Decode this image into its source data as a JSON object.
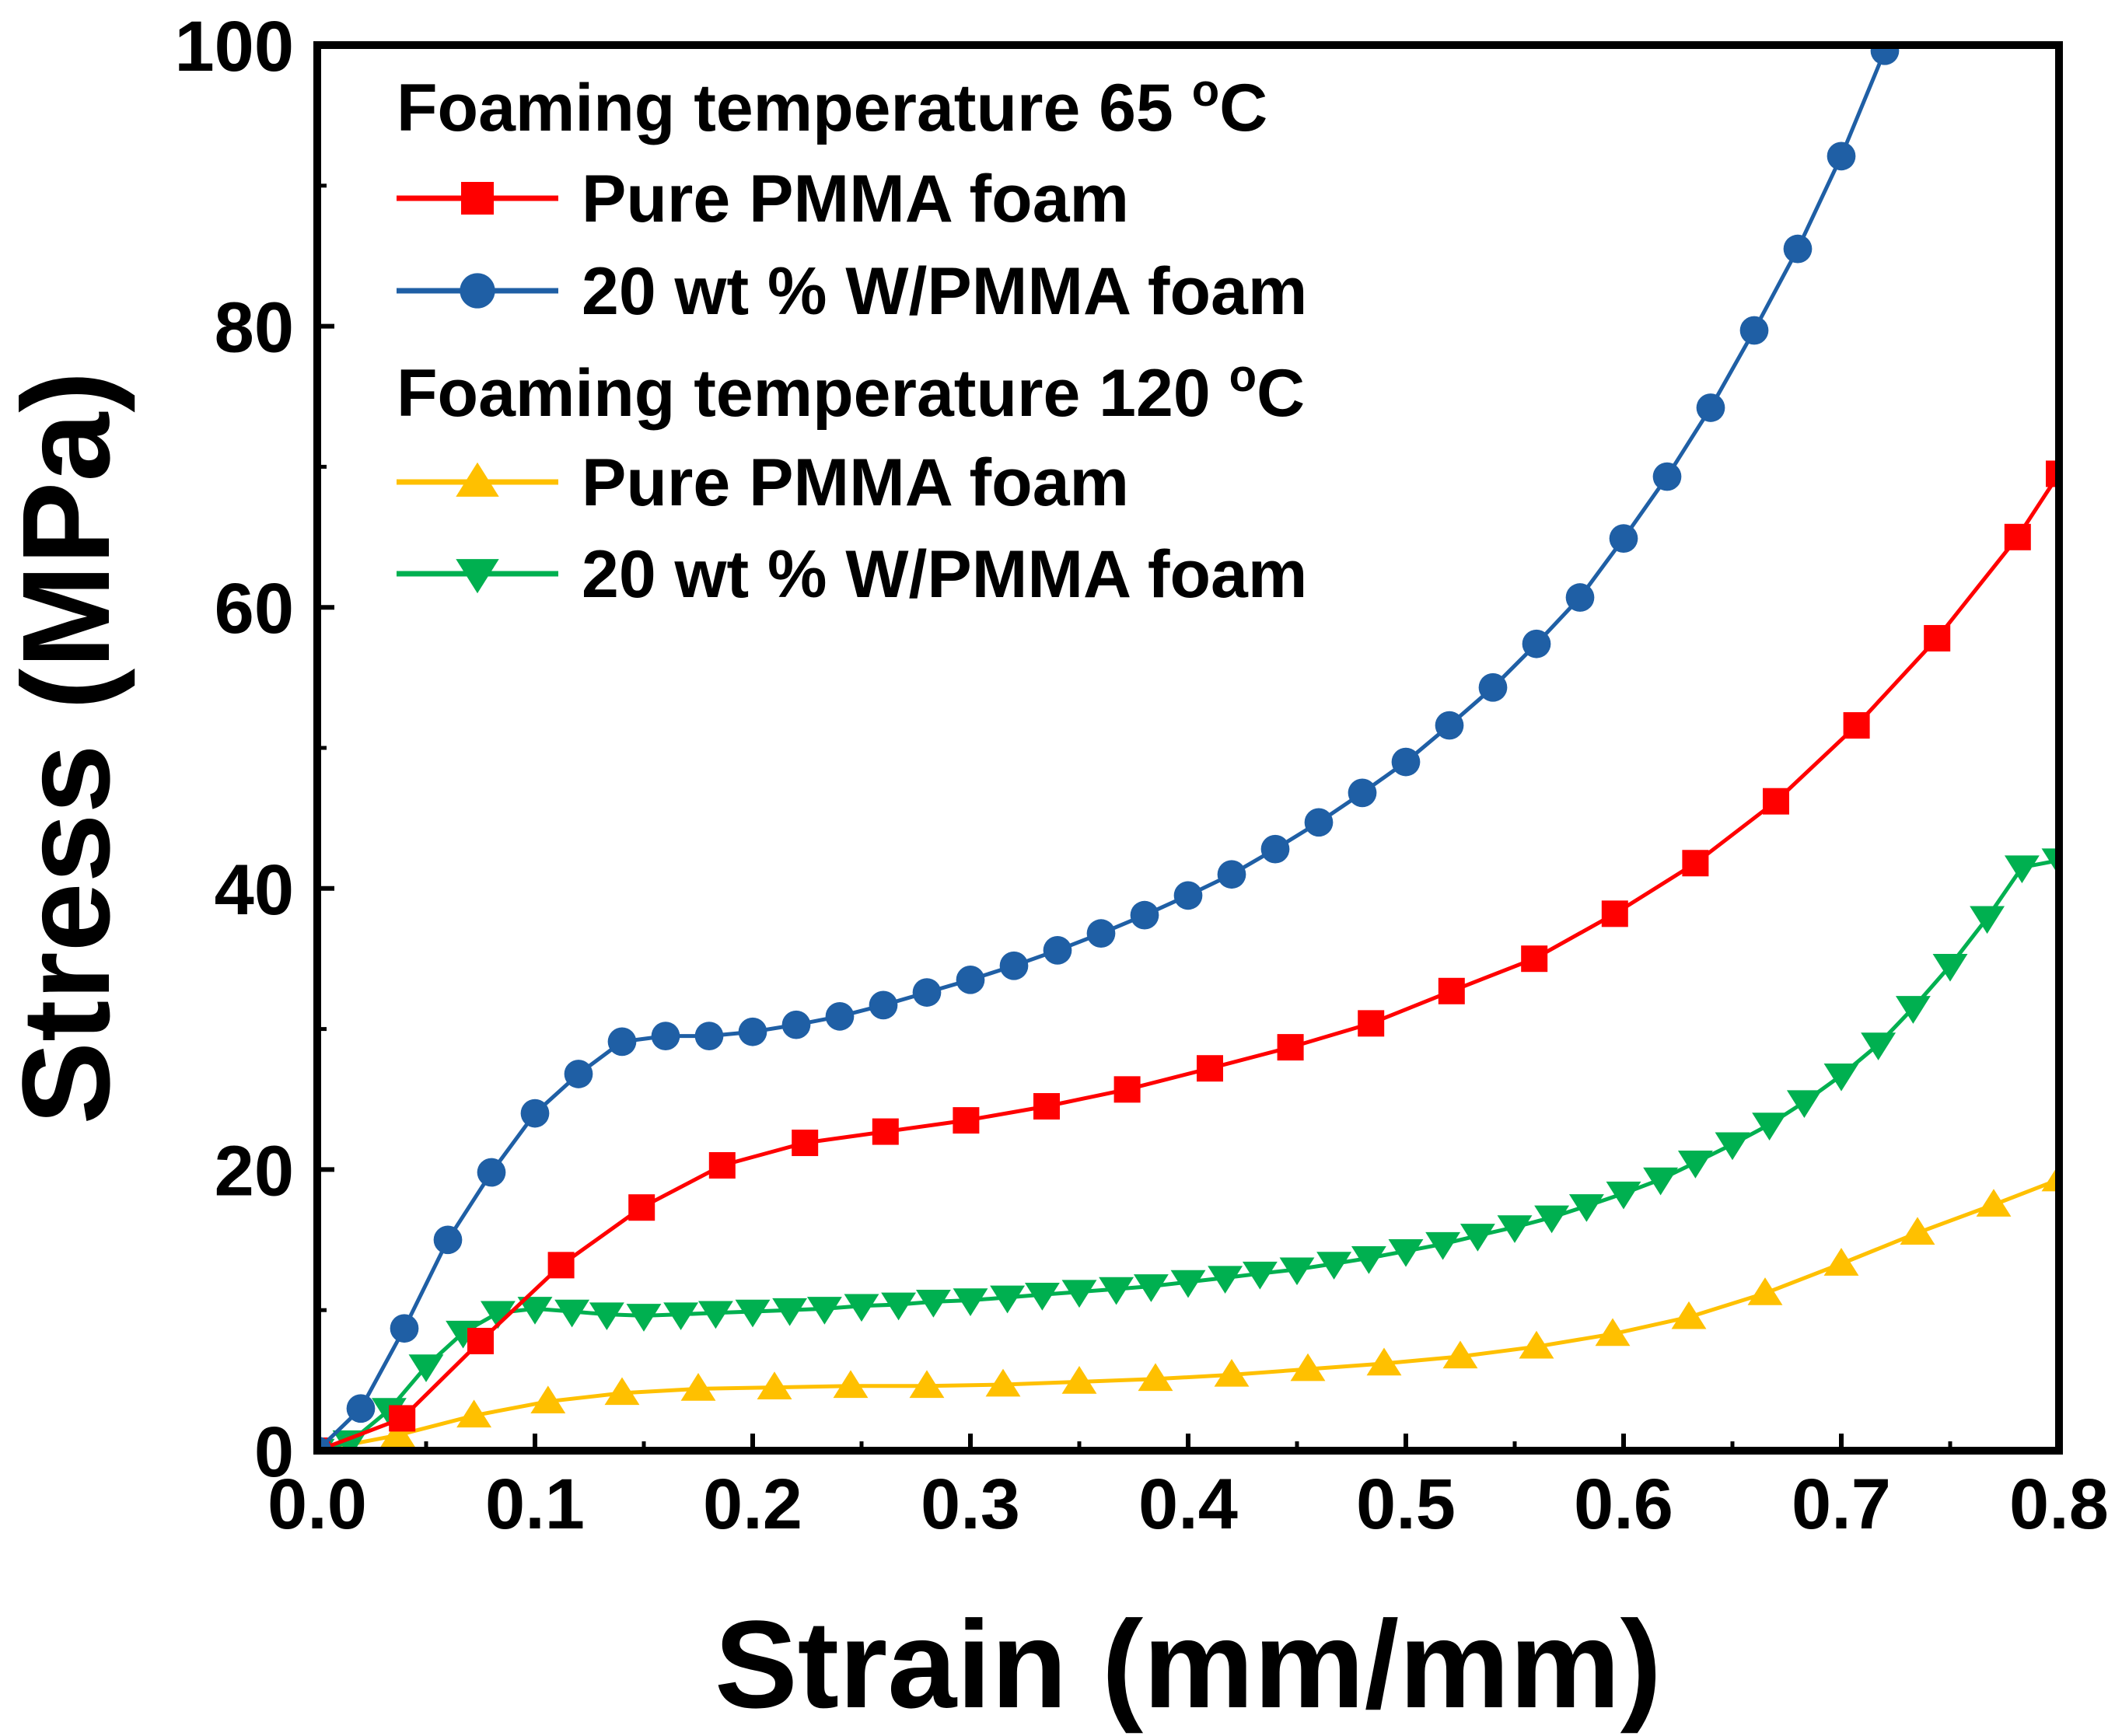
{
  "chart_data": {
    "type": "line",
    "xlabel": "Strain (mm/mm)",
    "ylabel": "Stress (MPa)",
    "xlim": [
      0.0,
      0.8
    ],
    "ylim": [
      0,
      100
    ],
    "xticks": [
      0.0,
      0.1,
      0.2,
      0.3,
      0.4,
      0.5,
      0.6,
      0.7,
      0.8
    ],
    "xtick_labels": [
      "0.0",
      "0.1",
      "0.2",
      "0.3",
      "0.4",
      "0.5",
      "0.6",
      "0.7",
      "0.8"
    ],
    "yticks": [
      0,
      20,
      40,
      60,
      80,
      100
    ],
    "ytick_labels": [
      "0",
      "20",
      "40",
      "60",
      "80",
      "100"
    ],
    "grid": false,
    "legend_position": "top-left",
    "legend_groups": [
      {
        "title": "Foaming temperature 65 °C",
        "title_prefix": "Foaming temperature 65 ",
        "title_degree": "o",
        "title_unit": "C",
        "series_names": [
          "Pure PMMA foam",
          "20 wt % W/PMMA foam"
        ]
      },
      {
        "title": "Foaming temperature 120 °C",
        "title_prefix": "Foaming temperature 120 ",
        "title_degree": "o",
        "title_unit": "C",
        "series_names": [
          "Pure PMMA foam",
          "20 wt % W/PMMA foam"
        ]
      }
    ],
    "series": [
      {
        "name": "Pure PMMA foam",
        "group": "Foaming temperature 65 °C",
        "color": "#ff0000",
        "marker": "square",
        "x": [
          0.0,
          0.039,
          0.075,
          0.112,
          0.149,
          0.186,
          0.224,
          0.261,
          0.298,
          0.335,
          0.372,
          0.41,
          0.447,
          0.484,
          0.521,
          0.559,
          0.596,
          0.633,
          0.67,
          0.707,
          0.744,
          0.781,
          0.8
        ],
        "y": [
          0.0,
          2.3,
          7.8,
          13.2,
          17.3,
          20.3,
          21.9,
          22.7,
          23.5,
          24.5,
          25.7,
          27.2,
          28.7,
          30.4,
          32.7,
          35.0,
          38.2,
          41.8,
          46.2,
          51.6,
          57.8,
          65.0,
          69.5
        ]
      },
      {
        "name": "20 wt % W/PMMA foam",
        "group": "Foaming temperature 65 °C",
        "color": "#1f5fa5",
        "marker": "circle",
        "x": [
          0.0,
          0.02,
          0.04,
          0.06,
          0.08,
          0.1,
          0.12,
          0.14,
          0.16,
          0.18,
          0.2,
          0.22,
          0.24,
          0.26,
          0.28,
          0.3,
          0.32,
          0.34,
          0.36,
          0.38,
          0.4,
          0.42,
          0.44,
          0.46,
          0.48,
          0.5,
          0.52,
          0.54,
          0.56,
          0.58,
          0.6,
          0.62,
          0.64,
          0.66,
          0.68,
          0.7,
          0.72
        ],
        "y": [
          0.0,
          3.0,
          8.7,
          15.0,
          19.8,
          24.0,
          26.8,
          29.1,
          29.5,
          29.5,
          29.8,
          30.3,
          30.9,
          31.7,
          32.6,
          33.5,
          34.5,
          35.6,
          36.8,
          38.1,
          39.5,
          41.0,
          42.8,
          44.7,
          46.8,
          49.0,
          51.6,
          54.3,
          57.4,
          60.7,
          64.9,
          69.3,
          74.2,
          79.7,
          85.5,
          92.1,
          99.6
        ]
      },
      {
        "name": "Pure PMMA foam",
        "group": "Foaming temperature 120 °C",
        "color": "#ffc000",
        "marker": "triangle-up",
        "x": [
          0.0,
          0.037,
          0.072,
          0.106,
          0.14,
          0.175,
          0.21,
          0.245,
          0.28,
          0.315,
          0.35,
          0.385,
          0.42,
          0.455,
          0.49,
          0.525,
          0.56,
          0.595,
          0.63,
          0.665,
          0.7,
          0.735,
          0.77,
          0.8
        ],
        "y": [
          0.0,
          1.1,
          2.5,
          3.5,
          4.1,
          4.4,
          4.5,
          4.6,
          4.6,
          4.7,
          4.9,
          5.1,
          5.4,
          5.8,
          6.2,
          6.7,
          7.4,
          8.3,
          9.5,
          11.2,
          13.3,
          15.5,
          17.5,
          19.3
        ]
      },
      {
        "name": "20 wt % W/PMMA foam",
        "group": "Foaming temperature 120 °C",
        "color": "#00b050",
        "marker": "triangle-down",
        "x": [
          0.0,
          0.015,
          0.033,
          0.05,
          0.067,
          0.083,
          0.1,
          0.117,
          0.133,
          0.15,
          0.167,
          0.183,
          0.2,
          0.217,
          0.233,
          0.25,
          0.267,
          0.283,
          0.3,
          0.317,
          0.333,
          0.35,
          0.367,
          0.383,
          0.4,
          0.417,
          0.433,
          0.45,
          0.467,
          0.483,
          0.5,
          0.517,
          0.533,
          0.55,
          0.567,
          0.583,
          0.6,
          0.617,
          0.633,
          0.65,
          0.667,
          0.683,
          0.7,
          0.717,
          0.733,
          0.75,
          0.767,
          0.783,
          0.8
        ],
        "y": [
          0.0,
          0.6,
          2.9,
          6.0,
          8.4,
          9.8,
          10.1,
          9.9,
          9.7,
          9.6,
          9.7,
          9.8,
          9.9,
          10.0,
          10.1,
          10.3,
          10.4,
          10.6,
          10.7,
          10.9,
          11.1,
          11.3,
          11.5,
          11.7,
          12.0,
          12.3,
          12.6,
          12.9,
          13.3,
          13.7,
          14.2,
          14.7,
          15.3,
          15.9,
          16.6,
          17.4,
          18.3,
          19.3,
          20.5,
          21.8,
          23.2,
          24.8,
          26.7,
          28.9,
          31.5,
          34.5,
          37.9,
          41.5,
          42.0
        ]
      }
    ]
  }
}
